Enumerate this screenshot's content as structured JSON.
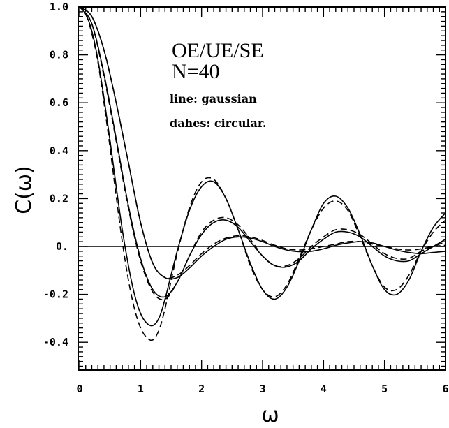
{
  "chart_data": {
    "type": "line",
    "title": "",
    "xlabel": "ω",
    "ylabel": "C(ω)",
    "xlim": [
      0,
      6
    ],
    "ylim": [
      -0.52,
      1.0
    ],
    "xticks": [
      0,
      1,
      2,
      3,
      4,
      5,
      6
    ],
    "xtick_labels": [
      "0",
      "1",
      "2",
      "3",
      "4",
      "5",
      "6"
    ],
    "yticks": [
      1.0,
      0.8,
      0.6,
      0.4,
      0.2,
      0.0,
      -0.2,
      -0.4
    ],
    "ytick_labels": [
      "1.0",
      "0.8",
      "0.6",
      "0.4",
      "0.2",
      "0.",
      "-0.2",
      "-0.4"
    ],
    "grid": false,
    "zero_line": true,
    "annotations": [
      "OE/UE/SE",
      "N=40",
      "line: gaussian",
      "dahes: circular."
    ],
    "series": [
      {
        "style": "solid",
        "points": [
          [
            0,
            1.0
          ],
          [
            0.2,
            0.96
          ],
          [
            0.4,
            0.82
          ],
          [
            0.6,
            0.6
          ],
          [
            0.8,
            0.35
          ],
          [
            1.0,
            0.1
          ],
          [
            1.2,
            -0.07
          ],
          [
            1.4,
            -0.13
          ],
          [
            1.6,
            -0.13
          ],
          [
            1.8,
            -0.09
          ],
          [
            2.0,
            -0.04
          ],
          [
            2.2,
            0.0
          ],
          [
            2.4,
            0.03
          ],
          [
            2.6,
            0.04
          ],
          [
            2.8,
            0.035
          ],
          [
            3.0,
            0.02
          ],
          [
            3.2,
            0.0
          ],
          [
            3.4,
            -0.015
          ],
          [
            3.6,
            -0.022
          ],
          [
            3.8,
            -0.02
          ],
          [
            4.0,
            -0.01
          ],
          [
            4.2,
            0.005
          ],
          [
            4.4,
            0.015
          ],
          [
            4.6,
            0.02
          ],
          [
            4.8,
            0.015
          ],
          [
            5.0,
            0.0
          ],
          [
            5.2,
            -0.015
          ],
          [
            5.4,
            -0.025
          ],
          [
            5.6,
            -0.03
          ],
          [
            5.8,
            -0.025
          ],
          [
            6.0,
            -0.02
          ]
        ]
      },
      {
        "style": "dashed",
        "points": [
          [
            0,
            1.0
          ],
          [
            0.2,
            0.96
          ],
          [
            0.4,
            0.82
          ],
          [
            0.6,
            0.6
          ],
          [
            0.8,
            0.35
          ],
          [
            1.0,
            0.1
          ],
          [
            1.2,
            -0.07
          ],
          [
            1.4,
            -0.13
          ],
          [
            1.6,
            -0.12
          ],
          [
            1.8,
            -0.08
          ],
          [
            2.0,
            -0.03
          ],
          [
            2.2,
            0.01
          ],
          [
            2.4,
            0.035
          ],
          [
            2.6,
            0.045
          ],
          [
            2.8,
            0.04
          ],
          [
            3.0,
            0.025
          ],
          [
            3.2,
            0.005
          ],
          [
            3.4,
            -0.01
          ],
          [
            3.6,
            -0.015
          ],
          [
            3.8,
            -0.01
          ],
          [
            4.0,
            0.0
          ],
          [
            4.2,
            0.01
          ],
          [
            4.4,
            0.02
          ],
          [
            4.6,
            0.02
          ],
          [
            4.8,
            0.01
          ],
          [
            5.0,
            0.0
          ],
          [
            5.2,
            -0.01
          ],
          [
            5.4,
            -0.015
          ],
          [
            5.6,
            -0.01
          ],
          [
            5.8,
            0.0
          ],
          [
            6.0,
            0.005
          ]
        ]
      },
      {
        "style": "solid",
        "points": [
          [
            0,
            1.0
          ],
          [
            0.2,
            0.93
          ],
          [
            0.4,
            0.72
          ],
          [
            0.6,
            0.45
          ],
          [
            0.8,
            0.17
          ],
          [
            1.0,
            -0.05
          ],
          [
            1.2,
            -0.18
          ],
          [
            1.4,
            -0.21
          ],
          [
            1.6,
            -0.15
          ],
          [
            1.8,
            -0.04
          ],
          [
            2.0,
            0.05
          ],
          [
            2.2,
            0.1
          ],
          [
            2.4,
            0.11
          ],
          [
            2.6,
            0.08
          ],
          [
            2.8,
            0.02
          ],
          [
            3.0,
            -0.04
          ],
          [
            3.2,
            -0.08
          ],
          [
            3.4,
            -0.085
          ],
          [
            3.6,
            -0.06
          ],
          [
            3.8,
            -0.01
          ],
          [
            4.0,
            0.03
          ],
          [
            4.2,
            0.06
          ],
          [
            4.4,
            0.06
          ],
          [
            4.6,
            0.04
          ],
          [
            4.8,
            0.0
          ],
          [
            5.0,
            -0.04
          ],
          [
            5.2,
            -0.06
          ],
          [
            5.4,
            -0.06
          ],
          [
            5.6,
            -0.03
          ],
          [
            5.8,
            0.0
          ],
          [
            6.0,
            0.03
          ]
        ]
      },
      {
        "style": "dashed",
        "points": [
          [
            0,
            1.0
          ],
          [
            0.2,
            0.93
          ],
          [
            0.4,
            0.71
          ],
          [
            0.6,
            0.44
          ],
          [
            0.8,
            0.16
          ],
          [
            1.0,
            -0.06
          ],
          [
            1.2,
            -0.19
          ],
          [
            1.4,
            -0.22
          ],
          [
            1.6,
            -0.15
          ],
          [
            1.8,
            -0.04
          ],
          [
            2.0,
            0.06
          ],
          [
            2.2,
            0.11
          ],
          [
            2.4,
            0.12
          ],
          [
            2.6,
            0.09
          ],
          [
            2.8,
            0.03
          ],
          [
            3.0,
            -0.04
          ],
          [
            3.2,
            -0.08
          ],
          [
            3.4,
            -0.08
          ],
          [
            3.6,
            -0.05
          ],
          [
            3.8,
            0.0
          ],
          [
            4.0,
            0.04
          ],
          [
            4.2,
            0.07
          ],
          [
            4.4,
            0.07
          ],
          [
            4.6,
            0.05
          ],
          [
            4.8,
            0.01
          ],
          [
            5.0,
            -0.03
          ],
          [
            5.2,
            -0.05
          ],
          [
            5.4,
            -0.05
          ],
          [
            5.6,
            -0.02
          ],
          [
            5.8,
            0.0
          ],
          [
            6.0,
            0.02
          ]
        ]
      },
      {
        "style": "solid",
        "points": [
          [
            0,
            1.0
          ],
          [
            0.1,
            0.97
          ],
          [
            0.2,
            0.9
          ],
          [
            0.3,
            0.78
          ],
          [
            0.4,
            0.62
          ],
          [
            0.5,
            0.44
          ],
          [
            0.6,
            0.25
          ],
          [
            0.7,
            0.07
          ],
          [
            0.8,
            -0.08
          ],
          [
            0.9,
            -0.2
          ],
          [
            1.0,
            -0.28
          ],
          [
            1.1,
            -0.32
          ],
          [
            1.2,
            -0.33
          ],
          [
            1.3,
            -0.3
          ],
          [
            1.4,
            -0.22
          ],
          [
            1.6,
            -0.02
          ],
          [
            1.8,
            0.15
          ],
          [
            2.0,
            0.25
          ],
          [
            2.2,
            0.27
          ],
          [
            2.4,
            0.2
          ],
          [
            2.6,
            0.07
          ],
          [
            2.8,
            -0.07
          ],
          [
            3.0,
            -0.18
          ],
          [
            3.2,
            -0.22
          ],
          [
            3.4,
            -0.17
          ],
          [
            3.6,
            -0.06
          ],
          [
            3.8,
            0.07
          ],
          [
            4.0,
            0.18
          ],
          [
            4.2,
            0.21
          ],
          [
            4.4,
            0.16
          ],
          [
            4.6,
            0.05
          ],
          [
            4.8,
            -0.08
          ],
          [
            5.0,
            -0.18
          ],
          [
            5.2,
            -0.2
          ],
          [
            5.4,
            -0.14
          ],
          [
            5.6,
            -0.02
          ],
          [
            5.8,
            0.08
          ],
          [
            6.0,
            0.14
          ]
        ]
      },
      {
        "style": "dashed",
        "points": [
          [
            0,
            1.0
          ],
          [
            0.1,
            0.97
          ],
          [
            0.2,
            0.89
          ],
          [
            0.3,
            0.77
          ],
          [
            0.4,
            0.6
          ],
          [
            0.5,
            0.41
          ],
          [
            0.6,
            0.21
          ],
          [
            0.7,
            0.02
          ],
          [
            0.8,
            -0.14
          ],
          [
            0.9,
            -0.26
          ],
          [
            1.0,
            -0.34
          ],
          [
            1.1,
            -0.38
          ],
          [
            1.2,
            -0.39
          ],
          [
            1.3,
            -0.35
          ],
          [
            1.4,
            -0.26
          ],
          [
            1.6,
            -0.03
          ],
          [
            1.8,
            0.16
          ],
          [
            2.0,
            0.27
          ],
          [
            2.2,
            0.28
          ],
          [
            2.4,
            0.2
          ],
          [
            2.6,
            0.07
          ],
          [
            2.8,
            -0.08
          ],
          [
            3.0,
            -0.18
          ],
          [
            3.2,
            -0.21
          ],
          [
            3.4,
            -0.16
          ],
          [
            3.6,
            -0.05
          ],
          [
            3.8,
            0.07
          ],
          [
            4.0,
            0.16
          ],
          [
            4.2,
            0.19
          ],
          [
            4.4,
            0.15
          ],
          [
            4.6,
            0.04
          ],
          [
            4.8,
            -0.08
          ],
          [
            5.0,
            -0.17
          ],
          [
            5.2,
            -0.18
          ],
          [
            5.4,
            -0.12
          ],
          [
            5.6,
            -0.02
          ],
          [
            5.8,
            0.06
          ],
          [
            6.0,
            0.11
          ]
        ]
      }
    ]
  }
}
